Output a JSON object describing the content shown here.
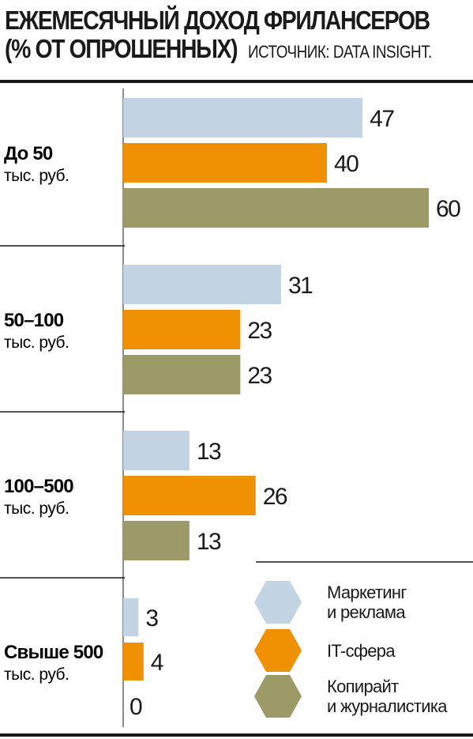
{
  "header": {
    "title_line1": "ЕЖЕМЕСЯЧНЫЙ ДОХОД ФРИЛАНСЕРОВ",
    "title_line2": "(% ОТ ОПРОШЕННЫХ)",
    "source": "ИСТОЧНИК: DATA INSIGHT."
  },
  "chart_data": {
    "type": "bar",
    "orientation": "horizontal",
    "title": "ЕЖЕМЕСЯЧНЫЙ ДОХОД ФРИЛАНСЕРОВ (% ОТ ОПРОШЕННЫХ)",
    "source": "ИСТОЧНИК: DATA INSIGHT.",
    "categories": [
      {
        "main": "До 50",
        "sub": "тыс. руб."
      },
      {
        "main": "50–100",
        "sub": "тыс. руб."
      },
      {
        "main": "100–500",
        "sub": "тыс. руб."
      },
      {
        "main": "Свыше 500",
        "sub": "тыс. руб."
      }
    ],
    "series": [
      {
        "name": "Маркетинг и реклама",
        "legend_lines": [
          "Маркетинг",
          "и реклама"
        ],
        "color": "#c2d3e4",
        "values": [
          47,
          31,
          13,
          3
        ]
      },
      {
        "name": "IT-сфера",
        "legend_lines": [
          "IT-сфера"
        ],
        "color": "#ef9102",
        "values": [
          40,
          23,
          26,
          4
        ]
      },
      {
        "name": "Копирайт и журналистика",
        "legend_lines": [
          "Копирайт",
          "и журналистика"
        ],
        "color": "#9c9a66",
        "values": [
          60,
          23,
          13,
          0
        ]
      }
    ],
    "xlim": [
      0,
      60
    ],
    "grid": false,
    "legend_position": "bottom-right"
  }
}
